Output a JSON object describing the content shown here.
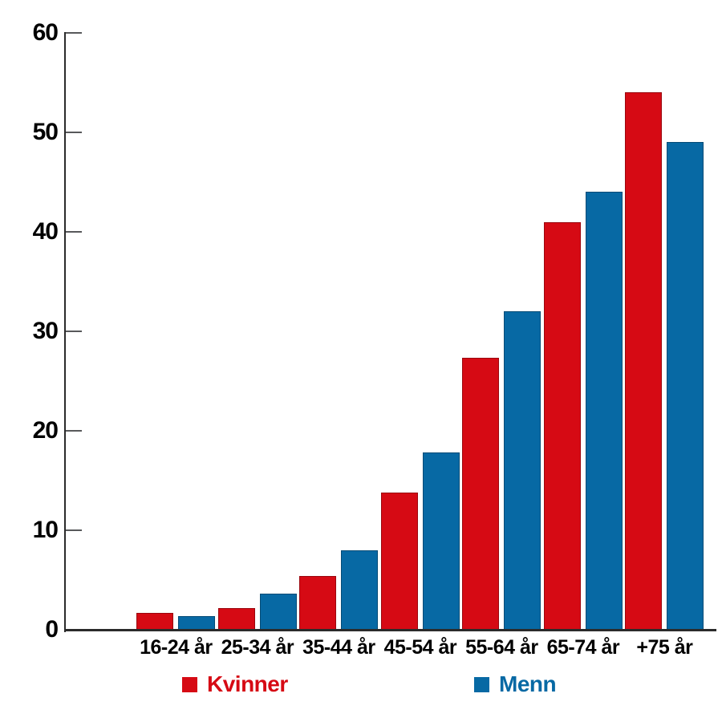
{
  "chart_data": {
    "type": "bar",
    "title": "",
    "xlabel": "",
    "ylabel": "",
    "categories": [
      "16-24 år",
      "25-34 år",
      "35-44 år",
      "45-54 år",
      "55-64 år",
      "65-74 år",
      "+75 år"
    ],
    "series": [
      {
        "name": "Kvinner",
        "color": "#d60a14",
        "values": [
          1.7,
          2.2,
          5.4,
          13.8,
          27.3,
          41,
          54
        ]
      },
      {
        "name": "Menn",
        "color": "#0769a4",
        "values": [
          1.4,
          3.6,
          8,
          17.8,
          32,
          44,
          49
        ]
      }
    ],
    "ylim": [
      0,
      60
    ],
    "yticks": [
      0,
      10,
      20,
      30,
      40,
      50,
      60
    ],
    "grid": false,
    "legend_position": "bottom",
    "axis_color": "#2b2b2b",
    "tick_color": "#58595b"
  }
}
